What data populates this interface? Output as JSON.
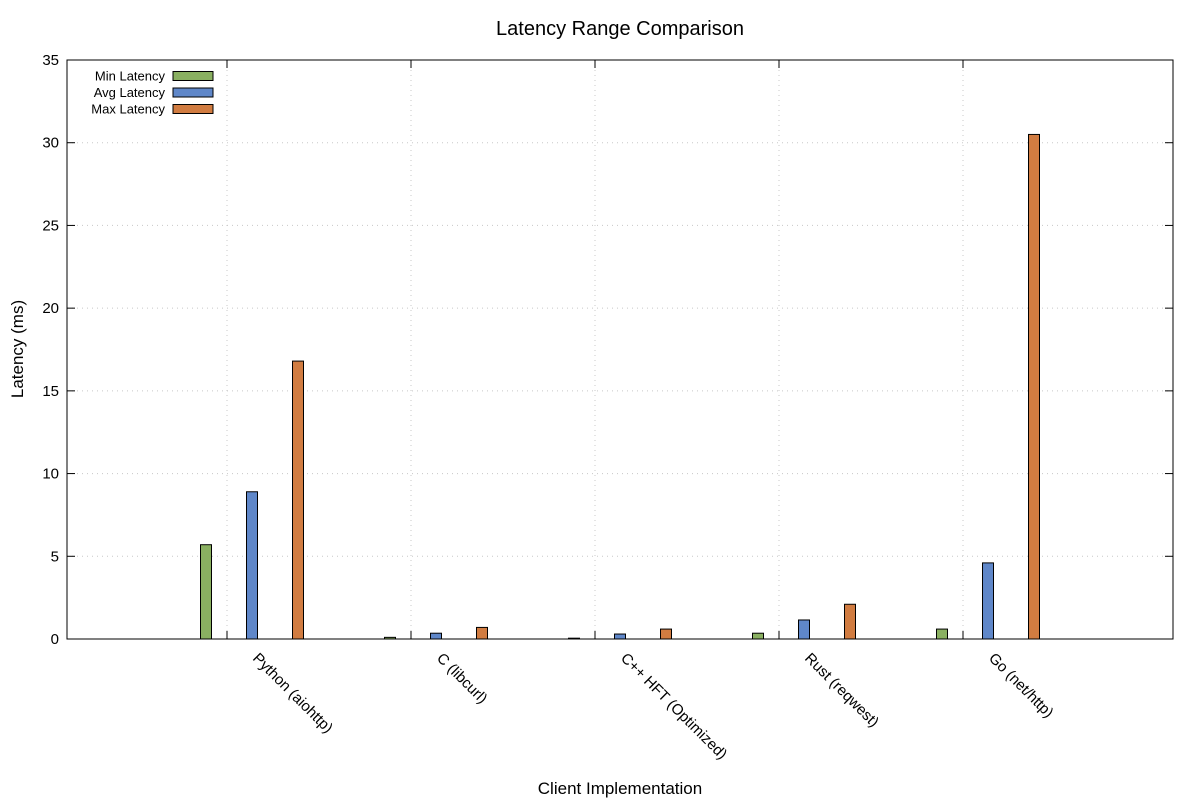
{
  "chart_data": {
    "type": "bar",
    "title": "Latency Range Comparison",
    "xlabel": "Client Implementation",
    "ylabel": "Latency (ms)",
    "ylim": [
      0,
      35
    ],
    "yticks": [
      0,
      5,
      10,
      15,
      20,
      25,
      30,
      35
    ],
    "grid": true,
    "legend_position": "top-left",
    "categories": [
      "Python (aiohttp)",
      "C (libcurl)",
      "C++ HFT (Optimized)",
      "Rust (reqwest)",
      "Go (net/http)"
    ],
    "series": [
      {
        "name": "Min Latency",
        "color": "#8ab061",
        "values": [
          5.7,
          0.1,
          0.05,
          0.35,
          0.6
        ]
      },
      {
        "name": "Avg Latency",
        "color": "#5f87c9",
        "values": [
          8.9,
          0.35,
          0.3,
          1.15,
          4.6
        ]
      },
      {
        "name": "Max Latency",
        "color": "#d17c41",
        "values": [
          16.8,
          0.7,
          0.6,
          2.1,
          30.5
        ]
      }
    ]
  }
}
